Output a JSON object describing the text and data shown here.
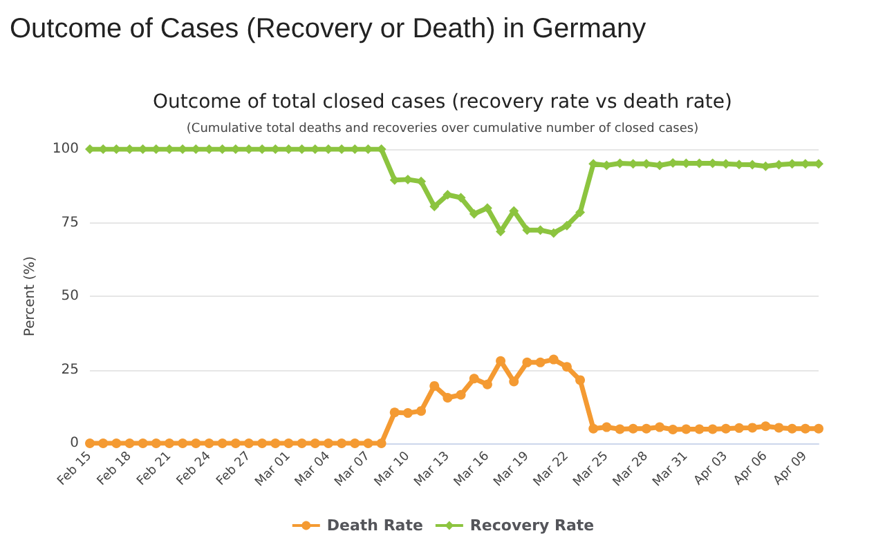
{
  "chart_data": {
    "type": "line",
    "title": "Outcome of Cases (Recovery or Death) in Germany",
    "subtitle": "Outcome of total closed cases (recovery rate vs death rate)",
    "annotations": [
      "(Cumulative total deaths and recoveries over cumulative number of closed cases)"
    ],
    "ylabel": "Percent (%)",
    "categories": [
      "Feb 15",
      null,
      null,
      "Feb 18",
      null,
      null,
      "Feb 21",
      null,
      null,
      "Feb 24",
      null,
      null,
      "Feb 27",
      null,
      null,
      "Mar 01",
      null,
      null,
      "Mar 04",
      null,
      null,
      "Mar 07",
      null,
      null,
      "Mar 10",
      null,
      null,
      "Mar 13",
      null,
      null,
      "Mar 16",
      null,
      null,
      "Mar 19",
      null,
      null,
      "Mar 22",
      null,
      null,
      "Mar 25",
      null,
      null,
      "Mar 28",
      null,
      null,
      "Mar 31",
      null,
      null,
      "Apr 03",
      null,
      null,
      "Apr 06",
      null,
      null,
      "Apr 09",
      null
    ],
    "series": [
      {
        "name": "Death Rate",
        "color": "#f49a32",
        "marker": "circle",
        "values": [
          0,
          0,
          0,
          0,
          0,
          0,
          0,
          0,
          0,
          0,
          0,
          0,
          0,
          0,
          0,
          0,
          0,
          0,
          0,
          0,
          0,
          0,
          0,
          10.5,
          10.3,
          11,
          19.5,
          15.5,
          16.5,
          22,
          20,
          28,
          21,
          27.5,
          27.5,
          28.5,
          26,
          21.5,
          5,
          5.5,
          4.8,
          5,
          5,
          5.5,
          4.7,
          4.8,
          4.8,
          4.8,
          5,
          5.2,
          5.3,
          5.8,
          5.3,
          5,
          5,
          5
        ]
      },
      {
        "name": "Recovery Rate",
        "color": "#8cc43f",
        "marker": "diamond",
        "values": [
          100,
          100,
          100,
          100,
          100,
          100,
          100,
          100,
          100,
          100,
          100,
          100,
          100,
          100,
          100,
          100,
          100,
          100,
          100,
          100,
          100,
          100,
          100,
          89.5,
          89.7,
          89,
          80.5,
          84.5,
          83.5,
          78,
          80,
          72,
          79,
          72.5,
          72.5,
          71.5,
          74,
          78.5,
          95,
          94.5,
          95.2,
          95,
          95,
          94.5,
          95.3,
          95.2,
          95.2,
          95.2,
          95,
          94.8,
          94.7,
          94.2,
          94.7,
          95,
          95,
          95
        ]
      }
    ],
    "ylim": [
      0,
      100
    ],
    "yticks": [
      0,
      25,
      50,
      75,
      100
    ],
    "grid": "y",
    "legend": "bottom",
    "line_style": "solid"
  }
}
